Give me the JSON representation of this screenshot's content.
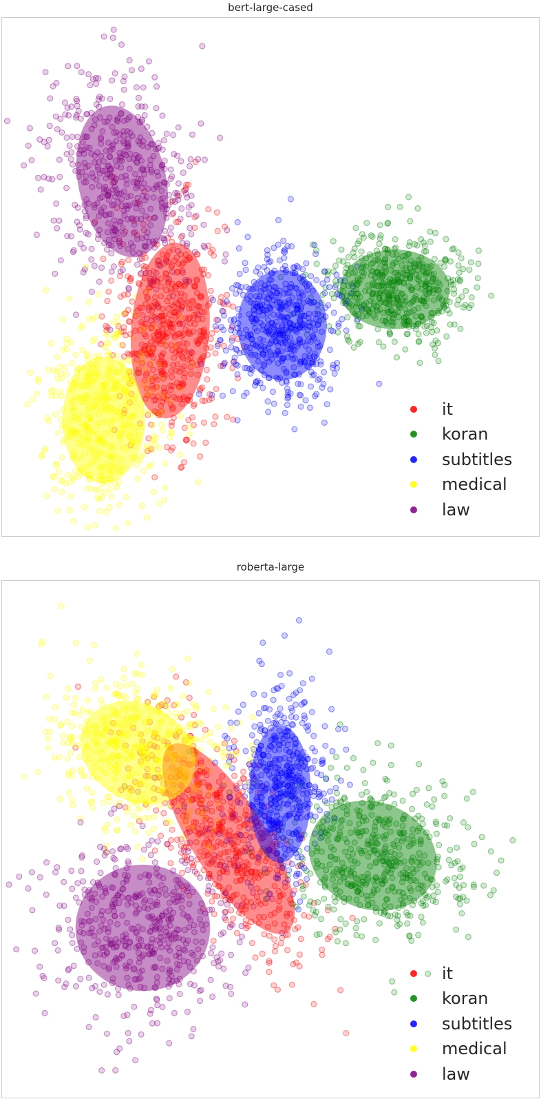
{
  "colors": {
    "it": "#ff0000",
    "koran": "#008000",
    "subtitles": "#0000ff",
    "medical": "#ffff00",
    "law": "#800080"
  },
  "chart_data": [
    {
      "type": "scatter",
      "title": "bert-large-cased",
      "xlabel": "",
      "ylabel": "",
      "grid": false,
      "legend_position": "bottom-right",
      "legend": [
        "it",
        "koran",
        "subtitles",
        "medical",
        "law"
      ],
      "xlim": [
        0,
        782
      ],
      "ylim": [
        0,
        754
      ],
      "series": [
        {
          "name": "it",
          "color": "#ff0000",
          "center": [
            245,
            455
          ],
          "spread": [
            42,
            78
          ],
          "rotation": 0,
          "n": 520
        },
        {
          "name": "koran",
          "color": "#008000",
          "center": [
            578,
            395
          ],
          "spread": [
            54,
            40
          ],
          "rotation": 0,
          "n": 520
        },
        {
          "name": "subtitles",
          "color": "#0000ff",
          "center": [
            408,
            450
          ],
          "spread": [
            45,
            58
          ],
          "rotation": 0,
          "n": 520
        },
        {
          "name": "medical",
          "color": "#ffff00",
          "center": [
            148,
            580
          ],
          "spread": [
            45,
            68
          ],
          "rotation": 0,
          "n": 520
        },
        {
          "name": "law",
          "color": "#800080",
          "center": [
            175,
            240
          ],
          "spread": [
            52,
            88
          ],
          "rotation": -12,
          "n": 520
        }
      ],
      "ellipses": [
        {
          "name": "it",
          "center": [
            245,
            455
          ],
          "radii": [
            57,
            128
          ],
          "rotation": 4
        },
        {
          "name": "koran",
          "center": [
            572,
            395
          ],
          "radii": [
            80,
            58
          ],
          "rotation": 0
        },
        {
          "name": "subtitles",
          "center": [
            408,
            447
          ],
          "radii": [
            65,
            80
          ],
          "rotation": 0
        },
        {
          "name": "medical",
          "center": [
            148,
            585
          ],
          "radii": [
            60,
            92
          ],
          "rotation": 0
        },
        {
          "name": "law",
          "center": [
            175,
            238
          ],
          "radii": [
            64,
            112
          ],
          "rotation": -12
        }
      ]
    },
    {
      "type": "scatter",
      "title": "roberta-large",
      "xlabel": "",
      "ylabel": "",
      "grid": false,
      "legend_position": "bottom-right",
      "legend": [
        "it",
        "koran",
        "subtitles",
        "medical",
        "law"
      ],
      "xlim": [
        0,
        782
      ],
      "ylim": [
        0,
        752
      ],
      "series": [
        {
          "name": "it",
          "color": "#ff0000",
          "center": [
            318,
            365
          ],
          "spread": [
            40,
            108
          ],
          "rotation": -32,
          "n": 520
        },
        {
          "name": "koran",
          "color": "#008000",
          "center": [
            545,
            400
          ],
          "spread": [
            70,
            55
          ],
          "rotation": 20,
          "n": 520
        },
        {
          "name": "subtitles",
          "color": "#0000ff",
          "center": [
            405,
            300
          ],
          "spread": [
            35,
            72
          ],
          "rotation": 0,
          "n": 520
        },
        {
          "name": "medical",
          "color": "#ffff00",
          "center": [
            200,
            245
          ],
          "spread": [
            70,
            58
          ],
          "rotation": 30,
          "n": 520
        },
        {
          "name": "law",
          "color": "#800080",
          "center": [
            205,
            500
          ],
          "spread": [
            72,
            68
          ],
          "rotation": 0,
          "n": 520
        }
      ],
      "ellipses": [
        {
          "name": "it",
          "center": [
            330,
            375
          ],
          "radii": [
            54,
            160
          ],
          "rotation": -32
        },
        {
          "name": "koran",
          "center": [
            540,
            400
          ],
          "radii": [
            95,
            78
          ],
          "rotation": 20
        },
        {
          "name": "subtitles",
          "center": [
            405,
            310
          ],
          "radii": [
            45,
            100
          ],
          "rotation": 0
        },
        {
          "name": "medical",
          "center": [
            198,
            250
          ],
          "radii": [
            88,
            70
          ],
          "rotation": 30
        },
        {
          "name": "law",
          "center": [
            205,
            505
          ],
          "radii": [
            98,
            92
          ],
          "rotation": 0
        }
      ]
    }
  ]
}
